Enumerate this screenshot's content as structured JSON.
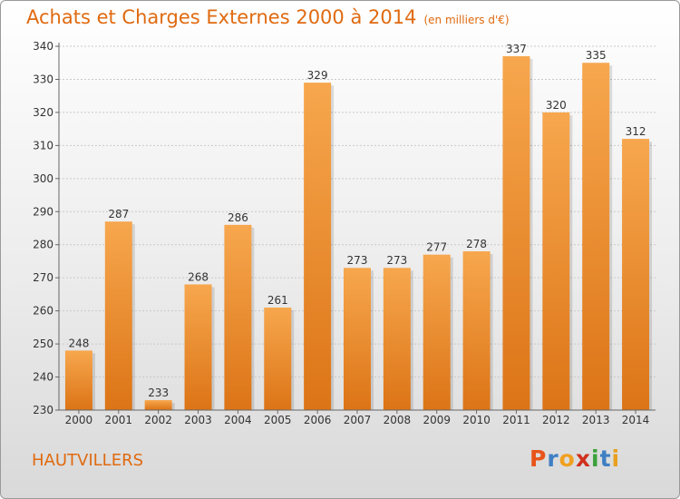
{
  "chart_data": {
    "type": "bar",
    "title": "Achats et Charges Externes 2000 à 2014",
    "subtitle": "(en milliers d'€)",
    "categories": [
      "2000",
      "2001",
      "2002",
      "2003",
      "2004",
      "2005",
      "2006",
      "2007",
      "2008",
      "2009",
      "2010",
      "2011",
      "2012",
      "2013",
      "2014"
    ],
    "values": [
      248,
      287,
      233,
      268,
      286,
      261,
      329,
      273,
      273,
      277,
      278,
      337,
      320,
      335,
      312
    ],
    "ylim": [
      230,
      340
    ],
    "yticks": [
      230,
      240,
      250,
      260,
      270,
      280,
      290,
      300,
      310,
      320,
      330,
      340
    ],
    "grid": true,
    "bar_color": "#f29a3c"
  },
  "footer": {
    "commune": "HAUTVILLERS",
    "logo_letters": [
      "P",
      "r",
      "o",
      "x",
      "i",
      "t",
      "i"
    ],
    "logo_colors": [
      "#e8541a",
      "#3f7fc4",
      "#f0a020",
      "#d0301e",
      "#3aa13a",
      "#3f7fc4",
      "#e8a020"
    ]
  }
}
